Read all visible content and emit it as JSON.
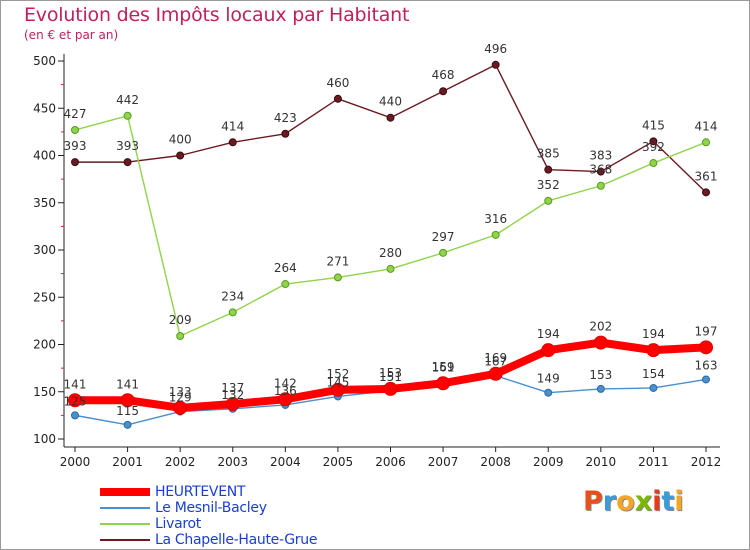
{
  "title": "Evolution des Impôts locaux par Habitant",
  "subtitle": "(en € et par an)",
  "logo": {
    "text": "Proxiti",
    "colors": [
      "#e8501a",
      "#3a9bd9",
      "#f5a623",
      "#7ab800",
      "#e83a1a",
      "#3a9bd9",
      "#f5a623"
    ]
  },
  "chart_data": {
    "type": "line",
    "x": [
      "2000",
      "2001",
      "2002",
      "2003",
      "2004",
      "2005",
      "2006",
      "2007",
      "2008",
      "2009",
      "2010",
      "2011",
      "2012"
    ],
    "ylim": [
      100,
      500
    ],
    "yticks": [
      "100",
      "150",
      "200",
      "250",
      "300",
      "350",
      "400",
      "450",
      "500"
    ],
    "grid": false,
    "legend_position": "bottom-left",
    "series": [
      {
        "name": "HEURTEVENT",
        "color": "#ff0000",
        "values": [
          141,
          141,
          133,
          137,
          142,
          152,
          153,
          159,
          169,
          194,
          202,
          194,
          197
        ],
        "labels": [
          "141",
          "141",
          "133",
          "137",
          "142",
          "152",
          "153",
          "159",
          "169",
          "194",
          "202",
          "194",
          "197"
        ]
      },
      {
        "name": "Le Mesnil-Bacley",
        "color": "#4a8fce",
        "values": [
          125,
          115,
          129,
          132,
          136,
          145,
          151,
          161,
          167,
          149,
          153,
          154,
          163
        ],
        "labels": [
          "125",
          "115",
          "129",
          "132",
          "136",
          "145",
          "151",
          "161",
          "167",
          "149",
          "153",
          "154",
          "163"
        ]
      },
      {
        "name": "Livarot",
        "color": "#8fd44a",
        "values": [
          427,
          442,
          209,
          234,
          264,
          271,
          280,
          297,
          316,
          352,
          368,
          392,
          414
        ],
        "labels": [
          "427",
          "442",
          "209",
          "234",
          "264",
          "271",
          "280",
          "297",
          "316",
          "352",
          "368",
          "392",
          "414"
        ]
      },
      {
        "name": "La Chapelle-Haute-Grue",
        "color": "#6b1a22",
        "values": [
          393,
          393,
          400,
          414,
          423,
          460,
          440,
          468,
          496,
          385,
          383,
          415,
          361
        ],
        "labels": [
          "393",
          "393",
          "400",
          "414",
          "423",
          "460",
          "440",
          "468",
          "496",
          "385",
          "383",
          "415",
          "361"
        ]
      }
    ]
  }
}
